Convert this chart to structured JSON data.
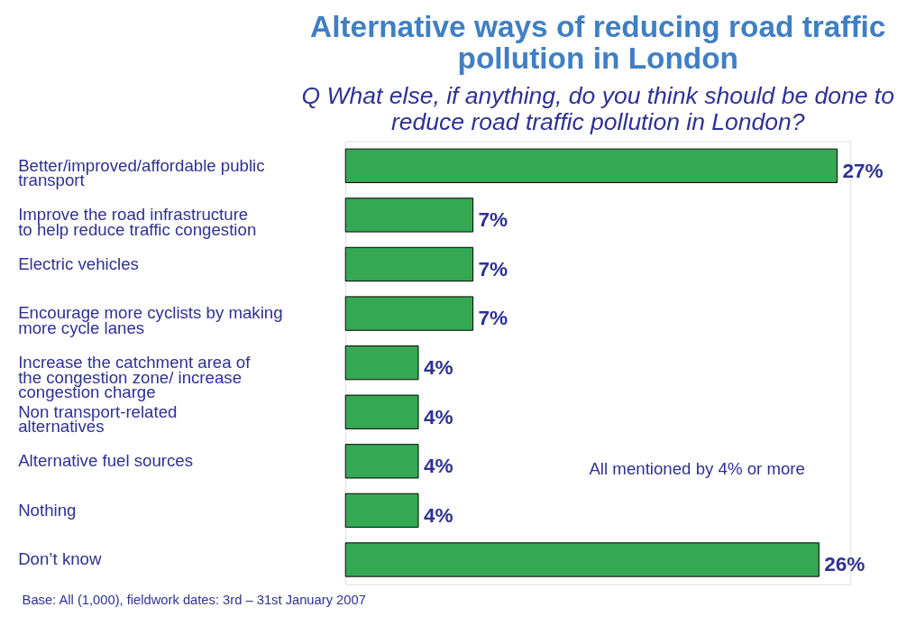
{
  "chart_data": {
    "type": "bar",
    "orientation": "horizontal",
    "title": "Alternative ways of reducing road traffic pollution in London",
    "subtitle": "Q  What else, if anything, do you think should be done to reduce road traffic pollution in London?",
    "categories": [
      "Better/improved/affordable public transport",
      "Improve the road infrastructure to help reduce traffic congestion",
      "Electric vehicles",
      "Encourage more cyclists by making more cycle lanes",
      "Increase the catchment area of the congestion zone/ increase congestion charge",
      "Non transport-related alternatives",
      "Alternative fuel sources",
      "Nothing",
      "Don’t know"
    ],
    "values": [
      27,
      7,
      7,
      7,
      4,
      4,
      4,
      4,
      26
    ],
    "value_labels": [
      "27%",
      "7%",
      "7%",
      "7%",
      "4%",
      "4%",
      "4%",
      "4%",
      "26%"
    ],
    "color": "#34a853",
    "annotations": [
      "All mentioned by 4% or more",
      "Base: All (1,000), fieldwork dates: 3rd – 31st January 2007"
    ]
  }
}
